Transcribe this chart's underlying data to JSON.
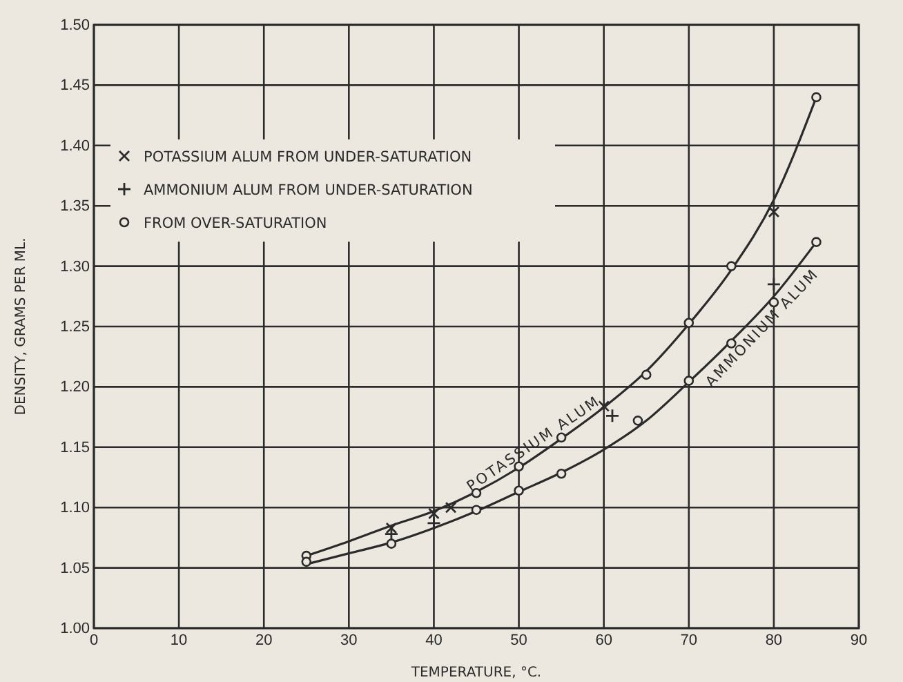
{
  "chart_data": {
    "type": "line",
    "xlabel": "TEMPERATURE, °C.",
    "ylabel": "DENSITY, GRAMS PER ML.",
    "xlim": [
      0,
      90
    ],
    "xticks": [
      0,
      10,
      20,
      30,
      40,
      50,
      60,
      70,
      80,
      90
    ],
    "ylim": [
      1.0,
      1.5
    ],
    "yticks": [
      {
        "value": 1.0,
        "label": "1.00"
      },
      {
        "value": 1.05,
        "label": "1.05"
      },
      {
        "value": 1.1,
        "label": "1.10"
      },
      {
        "value": 1.15,
        "label": "1.15"
      },
      {
        "value": 1.2,
        "label": "1.20"
      },
      {
        "value": 1.25,
        "label": "1.25"
      },
      {
        "value": 1.3,
        "label": "1.30"
      },
      {
        "value": 1.35,
        "label": "1.35"
      },
      {
        "value": 1.4,
        "label": "1.40"
      },
      {
        "value": 1.45,
        "label": "1.45"
      },
      {
        "value": 1.5,
        "label": "1.50"
      }
    ],
    "grid": true,
    "legend": "top left",
    "marker": "none",
    "line_style": "solid",
    "series": [
      {
        "name": "POTASSIUM ALUM",
        "color": "#2b2b2b",
        "x": [
          25,
          30,
          35,
          40,
          45,
          50,
          55,
          60,
          65,
          70,
          75,
          80,
          85
        ],
        "values": [
          1.06,
          1.072,
          1.085,
          1.097,
          1.113,
          1.133,
          1.157,
          1.183,
          1.213,
          1.252,
          1.297,
          1.355,
          1.44
        ]
      },
      {
        "name": "AMMONIUM ALUM",
        "color": "#2b2b2b",
        "x": [
          25,
          30,
          35,
          40,
          45,
          50,
          55,
          60,
          65,
          70,
          75,
          80,
          85
        ],
        "values": [
          1.053,
          1.062,
          1.071,
          1.083,
          1.097,
          1.113,
          1.129,
          1.148,
          1.172,
          1.204,
          1.238,
          1.275,
          1.32
        ]
      },
      {
        "name": "POTASSIUM ALUM FROM UNDER-SATURATION",
        "type": "scatter",
        "marker": "cross",
        "color": "#2b2b2b",
        "x": [
          35,
          40,
          42,
          60,
          80
        ],
        "values": [
          1.083,
          1.095,
          1.1,
          1.184,
          1.345
        ]
      },
      {
        "name": "AMMONIUM ALUM FROM UNDER-SATURATION",
        "type": "scatter",
        "marker": "plus",
        "color": "#2b2b2b",
        "x": [
          35,
          40,
          61,
          80
        ],
        "values": [
          1.078,
          1.087,
          1.176,
          1.285
        ]
      },
      {
        "name": "FROM OVER-SATURATION",
        "type": "scatter",
        "marker": "circle",
        "color": "#2b2b2b",
        "x": [
          25,
          45,
          50,
          55,
          65,
          70,
          75,
          85,
          25,
          35,
          45,
          50,
          55,
          64,
          70,
          75,
          80,
          85
        ],
        "values": [
          1.06,
          1.112,
          1.134,
          1.158,
          1.21,
          1.253,
          1.3,
          1.44,
          1.055,
          1.07,
          1.098,
          1.114,
          1.128,
          1.172,
          1.205,
          1.236,
          1.27,
          1.32
        ]
      }
    ]
  }
}
